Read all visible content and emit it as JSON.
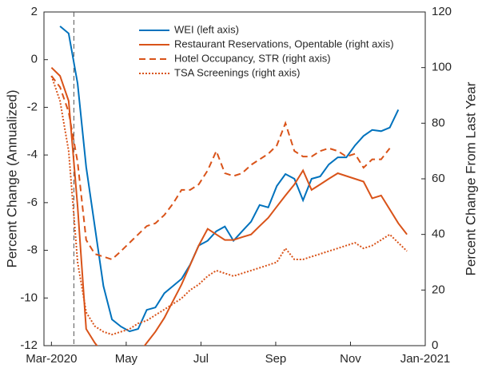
{
  "chart_data": {
    "type": "line",
    "ylabel": "Percent Change (Annualized)",
    "y2label": "Percent Change From Last Year",
    "x": [
      0,
      0.23,
      0.46,
      0.7,
      0.93,
      1.16,
      1.39,
      1.62,
      1.86,
      2.09,
      2.32,
      2.55,
      2.78,
      3.02,
      3.25,
      3.48,
      3.71,
      3.94,
      4.18,
      4.41,
      4.64,
      4.87,
      5.1,
      5.34,
      5.57,
      5.8,
      6.03,
      6.26,
      6.5,
      6.73,
      6.96,
      7.19,
      7.42,
      7.66,
      7.89,
      8.12,
      8.35,
      8.58,
      8.82,
      9.05,
      9.28,
      9.51
    ],
    "xlim": [
      -0.2,
      10
    ],
    "xticks": [
      {
        "value": 0,
        "label": "Mar-2020"
      },
      {
        "value": 2,
        "label": "May"
      },
      {
        "value": 4,
        "label": "Jul"
      },
      {
        "value": 6,
        "label": "Sep"
      },
      {
        "value": 8,
        "label": "Nov"
      },
      {
        "value": 10,
        "label": "Jan-2021"
      }
    ],
    "ylim": [
      -12,
      2
    ],
    "yticks": [
      -12,
      -10,
      -8,
      -6,
      -4,
      -2,
      0,
      2
    ],
    "y2lim": [
      0,
      120
    ],
    "y2ticks": [
      0,
      20,
      40,
      60,
      80,
      100,
      120
    ],
    "event_x": 0.6,
    "legend": "upper center",
    "series": [
      {
        "name": "WEI (left axis)",
        "color": "#0072bd",
        "dash": "solid",
        "axis": "y",
        "values": [
          null,
          1.4,
          1.1,
          -1,
          -4.5,
          -7,
          -9.5,
          -10.9,
          -11.2,
          -11.4,
          -11.3,
          -10.5,
          -10.4,
          -9.8,
          -9.5,
          -9.2,
          -8.6,
          -7.8,
          -7.6,
          -7.2,
          -7.0,
          -7.6,
          -7.2,
          -6.8,
          -6.1,
          -6.2,
          -5.3,
          -4.8,
          -5.0,
          -5.9,
          -5.0,
          -4.9,
          -4.4,
          -4.1,
          -4.1,
          -3.6,
          -3.2,
          -2.95,
          -3.0,
          -2.85,
          -2.1,
          null
        ]
      },
      {
        "name": "Restaurant Reservations, Opentable (right axis)",
        "color": "#d95319",
        "dash": "solid",
        "axis": "y2",
        "values": [
          100,
          97,
          88,
          50,
          6,
          1,
          -3,
          -5,
          -5,
          -5,
          -3,
          1,
          5,
          10,
          16,
          22,
          29,
          36,
          42,
          40,
          38,
          38,
          39,
          40,
          43,
          46,
          50,
          54,
          58,
          63,
          56,
          58,
          60,
          62,
          61,
          60,
          59,
          53,
          54,
          49,
          44,
          40
        ]
      },
      {
        "name": "Hotel Occupancy, STR (right axis)",
        "color": "#d95319",
        "dash": "dashed",
        "axis": "y2",
        "values": [
          97,
          93,
          84,
          66,
          38,
          33,
          32,
          31,
          34,
          37,
          40,
          43,
          44,
          47,
          51,
          56,
          56,
          58,
          63,
          70,
          62,
          61,
          62,
          65,
          67,
          69,
          72,
          80,
          70,
          68,
          68,
          70,
          71,
          70,
          68,
          69,
          64,
          67,
          67,
          71,
          null,
          null
        ]
      },
      {
        "name": "TSA Screenings (right axis)",
        "color": "#d95319",
        "dash": "dotted",
        "axis": "y2",
        "values": [
          97,
          88,
          70,
          30,
          12,
          7,
          5,
          4,
          5,
          6,
          8,
          9,
          11,
          13,
          15,
          17,
          20,
          22,
          25,
          27,
          26,
          25,
          26,
          27,
          28,
          29,
          30,
          35,
          31,
          31,
          32,
          33,
          34,
          35,
          36,
          37,
          35,
          36,
          38,
          40,
          37,
          34
        ]
      }
    ]
  }
}
